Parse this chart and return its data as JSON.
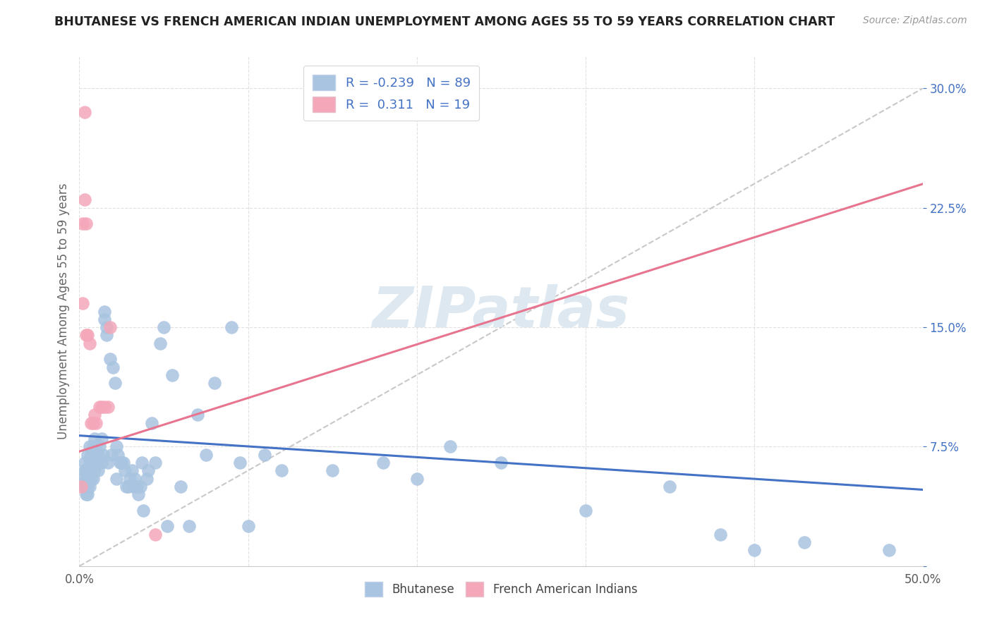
{
  "title": "BHUTANESE VS FRENCH AMERICAN INDIAN UNEMPLOYMENT AMONG AGES 55 TO 59 YEARS CORRELATION CHART",
  "source": "Source: ZipAtlas.com",
  "ylabel": "Unemployment Among Ages 55 to 59 years",
  "xlim": [
    0.0,
    0.5
  ],
  "ylim": [
    0.0,
    0.32
  ],
  "xticks": [
    0.0,
    0.1,
    0.2,
    0.3,
    0.4,
    0.5
  ],
  "xticklabels": [
    "0.0%",
    "",
    "",
    "",
    "",
    "50.0%"
  ],
  "yticks": [
    0.0,
    0.075,
    0.15,
    0.225,
    0.3
  ],
  "yticklabels": [
    "",
    "7.5%",
    "15.0%",
    "22.5%",
    "30.0%"
  ],
  "bhutanese_R": -0.239,
  "bhutanese_N": 89,
  "french_R": 0.311,
  "french_N": 19,
  "bhutanese_color": "#a8c4e0",
  "french_color": "#f4a7b9",
  "bhutanese_line_color": "#4472c4",
  "french_line_color": "#e8758f",
  "trendline_dash_color": "#c8c8c8",
  "watermark": "ZIPatlas",
  "bhutanese_x": [
    0.002,
    0.003,
    0.003,
    0.003,
    0.004,
    0.004,
    0.004,
    0.004,
    0.005,
    0.005,
    0.005,
    0.005,
    0.005,
    0.006,
    0.006,
    0.006,
    0.006,
    0.007,
    0.007,
    0.008,
    0.008,
    0.008,
    0.009,
    0.009,
    0.009,
    0.01,
    0.01,
    0.011,
    0.011,
    0.012,
    0.013,
    0.013,
    0.014,
    0.015,
    0.015,
    0.016,
    0.016,
    0.017,
    0.018,
    0.019,
    0.02,
    0.021,
    0.022,
    0.022,
    0.023,
    0.024,
    0.025,
    0.026,
    0.027,
    0.028,
    0.029,
    0.03,
    0.031,
    0.032,
    0.033,
    0.034,
    0.035,
    0.036,
    0.037,
    0.038,
    0.04,
    0.041,
    0.043,
    0.045,
    0.048,
    0.05,
    0.052,
    0.055,
    0.06,
    0.065,
    0.07,
    0.075,
    0.08,
    0.09,
    0.095,
    0.1,
    0.11,
    0.12,
    0.15,
    0.18,
    0.2,
    0.22,
    0.25,
    0.3,
    0.35,
    0.38,
    0.4,
    0.43,
    0.48
  ],
  "bhutanese_y": [
    0.055,
    0.06,
    0.05,
    0.065,
    0.06,
    0.055,
    0.05,
    0.045,
    0.07,
    0.06,
    0.055,
    0.05,
    0.045,
    0.075,
    0.065,
    0.06,
    0.05,
    0.07,
    0.055,
    0.075,
    0.065,
    0.055,
    0.08,
    0.07,
    0.06,
    0.075,
    0.065,
    0.07,
    0.06,
    0.075,
    0.08,
    0.065,
    0.07,
    0.16,
    0.155,
    0.145,
    0.15,
    0.065,
    0.13,
    0.07,
    0.125,
    0.115,
    0.075,
    0.055,
    0.07,
    0.065,
    0.065,
    0.065,
    0.06,
    0.05,
    0.05,
    0.055,
    0.06,
    0.05,
    0.055,
    0.05,
    0.045,
    0.05,
    0.065,
    0.035,
    0.055,
    0.06,
    0.09,
    0.065,
    0.14,
    0.15,
    0.025,
    0.12,
    0.05,
    0.025,
    0.095,
    0.07,
    0.115,
    0.15,
    0.065,
    0.025,
    0.07,
    0.06,
    0.06,
    0.065,
    0.055,
    0.075,
    0.065,
    0.035,
    0.05,
    0.02,
    0.01,
    0.015,
    0.01
  ],
  "french_x": [
    0.001,
    0.002,
    0.002,
    0.003,
    0.003,
    0.004,
    0.004,
    0.005,
    0.006,
    0.007,
    0.008,
    0.009,
    0.01,
    0.012,
    0.013,
    0.015,
    0.017,
    0.018,
    0.045
  ],
  "french_y": [
    0.05,
    0.215,
    0.165,
    0.23,
    0.285,
    0.215,
    0.145,
    0.145,
    0.14,
    0.09,
    0.09,
    0.095,
    0.09,
    0.1,
    0.1,
    0.1,
    0.1,
    0.15,
    0.02
  ],
  "bhutanese_trendline_x": [
    0.0,
    0.5
  ],
  "bhutanese_trendline_y": [
    0.082,
    0.048
  ],
  "french_trendline_x": [
    0.0,
    0.5
  ],
  "french_trendline_y": [
    0.072,
    0.24
  ]
}
